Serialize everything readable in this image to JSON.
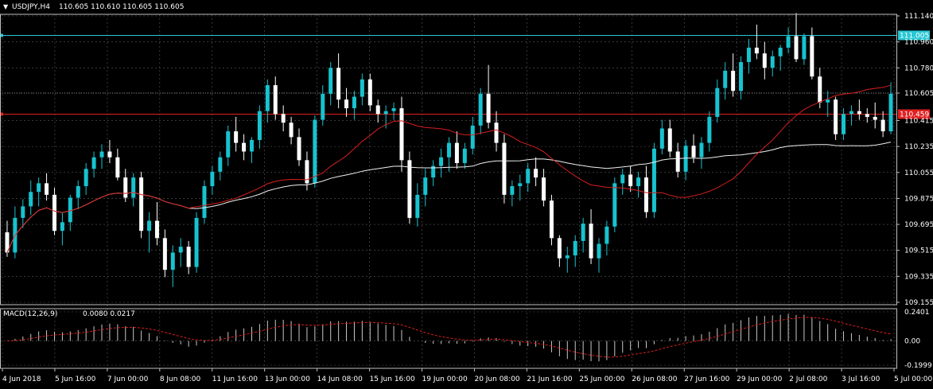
{
  "header": {
    "dropdown_glyph": "▼",
    "symbol": "USDJPY,H4",
    "ohlc": "110.605 110.610 110.605 110.605"
  },
  "colors": {
    "bull": "#17c3cf",
    "bear": "#ffffff",
    "ma_fast": "#d81e1e",
    "ma_slow": "#f0f0f0",
    "hline_cyan": "#28c7d4",
    "hline_red": "#e02020",
    "hline_grey": "#8a8a8a",
    "macd_hist": "#c8c8c8",
    "macd_signal": "#d81e1e",
    "grid": "#5a5a5a",
    "axis": "#bfbfbf"
  },
  "chart_data": {
    "type": "candlestick",
    "symbol": "USDJPY",
    "timeframe": "H4",
    "y_ticks": [
      111.14,
      110.96,
      110.78,
      110.605,
      110.415,
      110.235,
      110.055,
      109.875,
      109.695,
      109.515,
      109.335,
      109.155
    ],
    "y_tick_labels": [
      "111.140",
      "110.960",
      "110.780",
      "110.605",
      "110.415",
      "110.235",
      "110.055",
      "109.875",
      "109.695",
      "109.515",
      "109.335",
      "109.155"
    ],
    "ylim": [
      109.155,
      111.14
    ],
    "hlines": [
      {
        "label": "111.005",
        "value": 111.005,
        "color": "cyan"
      },
      {
        "label": "110.459",
        "value": 110.459,
        "color": "red"
      },
      {
        "label": "",
        "value": 110.605,
        "color": "grey",
        "dotted": true
      }
    ],
    "x_labels": [
      "4 Jun 2018",
      "5 Jun 16:00",
      "7 Jun 00:00",
      "8 Jun 08:00",
      "11 Jun 16:00",
      "13 Jun 00:00",
      "14 Jun 08:00",
      "15 Jun 16:00",
      "19 Jun 00:00",
      "20 Jun 08:00",
      "21 Jun 16:00",
      "25 Jun 00:00",
      "26 Jun 08:00",
      "27 Jun 16:00",
      "29 Jun 00:00",
      "2 Jul 08:00",
      "3 Jul 16:00",
      "5 Jul 00:00"
    ],
    "candles": [
      [
        109.64,
        109.72,
        109.47,
        109.5
      ],
      [
        109.5,
        109.82,
        109.46,
        109.74
      ],
      [
        109.74,
        109.87,
        109.67,
        109.82
      ],
      [
        109.82,
        110.0,
        109.76,
        109.92
      ],
      [
        109.92,
        110.02,
        109.82,
        109.98
      ],
      [
        109.98,
        110.05,
        109.86,
        109.9
      ],
      [
        109.9,
        109.95,
        109.62,
        109.65
      ],
      [
        109.65,
        109.78,
        109.55,
        109.71
      ],
      [
        109.71,
        109.9,
        109.65,
        109.88
      ],
      [
        109.88,
        110.0,
        109.8,
        109.96
      ],
      [
        109.96,
        110.12,
        109.9,
        110.08
      ],
      [
        110.08,
        110.2,
        110.02,
        110.16
      ],
      [
        110.16,
        110.25,
        110.08,
        110.2
      ],
      [
        110.2,
        110.28,
        110.12,
        110.16
      ],
      [
        110.16,
        110.22,
        110.0,
        110.02
      ],
      [
        110.02,
        110.08,
        109.85,
        109.88
      ],
      [
        109.88,
        110.05,
        109.82,
        110.02
      ],
      [
        110.02,
        110.06,
        109.6,
        109.65
      ],
      [
        109.65,
        109.78,
        109.5,
        109.72
      ],
      [
        109.72,
        109.85,
        109.55,
        109.6
      ],
      [
        109.6,
        109.66,
        109.33,
        109.38
      ],
      [
        109.38,
        109.55,
        109.26,
        109.5
      ],
      [
        109.5,
        109.6,
        109.4,
        109.54
      ],
      [
        109.54,
        109.58,
        109.35,
        109.4
      ],
      [
        109.4,
        109.78,
        109.36,
        109.74
      ],
      [
        109.74,
        110.0,
        109.7,
        109.96
      ],
      [
        109.96,
        110.1,
        109.9,
        110.06
      ],
      [
        110.06,
        110.2,
        110.0,
        110.16
      ],
      [
        110.16,
        110.38,
        110.1,
        110.34
      ],
      [
        110.34,
        110.44,
        110.2,
        110.26
      ],
      [
        110.26,
        110.32,
        110.14,
        110.2
      ],
      [
        110.2,
        110.3,
        110.12,
        110.28
      ],
      [
        110.28,
        110.52,
        110.22,
        110.48
      ],
      [
        110.48,
        110.7,
        110.4,
        110.66
      ],
      [
        110.66,
        110.72,
        110.42,
        110.46
      ],
      [
        110.46,
        110.52,
        110.34,
        110.4
      ],
      [
        110.4,
        110.44,
        110.25,
        110.3
      ],
      [
        110.3,
        110.36,
        110.1,
        110.14
      ],
      [
        110.14,
        110.2,
        109.93,
        109.98
      ],
      [
        109.98,
        110.45,
        109.95,
        110.42
      ],
      [
        110.42,
        110.66,
        110.38,
        110.6
      ],
      [
        110.6,
        110.82,
        110.52,
        110.78
      ],
      [
        110.78,
        110.88,
        110.5,
        110.56
      ],
      [
        110.56,
        110.64,
        110.44,
        110.5
      ],
      [
        110.5,
        110.62,
        110.42,
        110.58
      ],
      [
        110.58,
        110.74,
        110.52,
        110.7
      ],
      [
        110.7,
        110.74,
        110.48,
        110.52
      ],
      [
        110.52,
        110.56,
        110.4,
        110.46
      ],
      [
        110.46,
        110.52,
        110.36,
        110.48
      ],
      [
        110.48,
        110.54,
        110.42,
        110.5
      ],
      [
        110.5,
        110.58,
        110.06,
        110.14
      ],
      [
        110.14,
        110.2,
        109.7,
        109.74
      ],
      [
        109.74,
        109.98,
        109.68,
        109.9
      ],
      [
        109.9,
        110.08,
        109.82,
        110.02
      ],
      [
        110.02,
        110.14,
        109.96,
        110.1
      ],
      [
        110.1,
        110.22,
        110.02,
        110.16
      ],
      [
        110.16,
        110.3,
        110.06,
        110.26
      ],
      [
        110.26,
        110.34,
        110.08,
        110.12
      ],
      [
        110.12,
        110.26,
        110.08,
        110.22
      ],
      [
        110.22,
        110.44,
        110.18,
        110.38
      ],
      [
        110.38,
        110.64,
        110.32,
        110.6
      ],
      [
        110.6,
        110.8,
        110.36,
        110.4
      ],
      [
        110.4,
        110.48,
        110.2,
        110.26
      ],
      [
        110.26,
        110.32,
        109.84,
        109.9
      ],
      [
        109.9,
        110.0,
        109.82,
        109.96
      ],
      [
        109.96,
        110.04,
        109.86,
        109.98
      ],
      [
        109.98,
        110.12,
        109.92,
        110.08
      ],
      [
        110.08,
        110.16,
        109.96,
        110.02
      ],
      [
        110.02,
        110.08,
        109.82,
        109.86
      ],
      [
        109.86,
        109.9,
        109.55,
        109.6
      ],
      [
        109.6,
        109.62,
        109.4,
        109.46
      ],
      [
        109.46,
        109.54,
        109.36,
        109.48
      ],
      [
        109.48,
        109.62,
        109.4,
        109.58
      ],
      [
        109.58,
        109.74,
        109.5,
        109.7
      ],
      [
        109.7,
        109.8,
        109.42,
        109.46
      ],
      [
        109.46,
        109.6,
        109.36,
        109.56
      ],
      [
        109.56,
        109.72,
        109.48,
        109.68
      ],
      [
        109.68,
        110.02,
        109.64,
        109.98
      ],
      [
        109.98,
        110.08,
        109.9,
        110.04
      ],
      [
        110.04,
        110.1,
        109.92,
        109.96
      ],
      [
        109.96,
        110.06,
        109.88,
        110.02
      ],
      [
        110.02,
        110.1,
        109.74,
        109.78
      ],
      [
        109.78,
        110.26,
        109.74,
        110.22
      ],
      [
        110.22,
        110.42,
        110.18,
        110.36
      ],
      [
        110.36,
        110.42,
        110.16,
        110.2
      ],
      [
        110.2,
        110.26,
        110.02,
        110.06
      ],
      [
        110.06,
        110.28,
        110.0,
        110.24
      ],
      [
        110.24,
        110.32,
        110.12,
        110.16
      ],
      [
        110.16,
        110.3,
        110.08,
        110.26
      ],
      [
        110.26,
        110.48,
        110.2,
        110.44
      ],
      [
        110.44,
        110.7,
        110.4,
        110.64
      ],
      [
        110.64,
        110.82,
        110.56,
        110.76
      ],
      [
        110.76,
        110.88,
        110.58,
        110.62
      ],
      [
        110.62,
        110.86,
        110.56,
        110.82
      ],
      [
        110.82,
        110.98,
        110.74,
        110.92
      ],
      [
        110.92,
        111.08,
        110.84,
        110.88
      ],
      [
        110.88,
        110.96,
        110.7,
        110.78
      ],
      [
        110.78,
        110.9,
        110.72,
        110.86
      ],
      [
        110.86,
        110.94,
        110.76,
        110.92
      ],
      [
        110.92,
        111.06,
        110.88,
        111.0
      ],
      [
        111.0,
        111.16,
        110.82,
        110.84
      ],
      [
        110.84,
        111.02,
        110.8,
        111.0
      ],
      [
        111.0,
        111.06,
        110.7,
        110.72
      ],
      [
        110.72,
        110.78,
        110.5,
        110.54
      ],
      [
        110.54,
        110.62,
        110.44,
        110.56
      ],
      [
        110.56,
        110.58,
        110.28,
        110.32
      ],
      [
        110.32,
        110.5,
        110.28,
        110.46
      ],
      [
        110.46,
        110.52,
        110.38,
        110.48
      ],
      [
        110.48,
        110.56,
        110.42,
        110.46
      ],
      [
        110.46,
        110.5,
        110.4,
        110.44
      ],
      [
        110.44,
        110.54,
        110.36,
        110.42
      ],
      [
        110.42,
        110.48,
        110.3,
        110.34
      ],
      [
        110.34,
        110.68,
        110.32,
        110.6
      ]
    ],
    "indicator": {
      "name": "MACD(12,26,9)",
      "values_label": "0.0080 0.0217",
      "y_ticks": [
        0.2401,
        0.0,
        -0.1999
      ],
      "y_tick_labels": [
        "0.2401",
        "0.00",
        "-0.1999"
      ],
      "ylim": [
        -0.1999,
        0.2401
      ]
    }
  }
}
